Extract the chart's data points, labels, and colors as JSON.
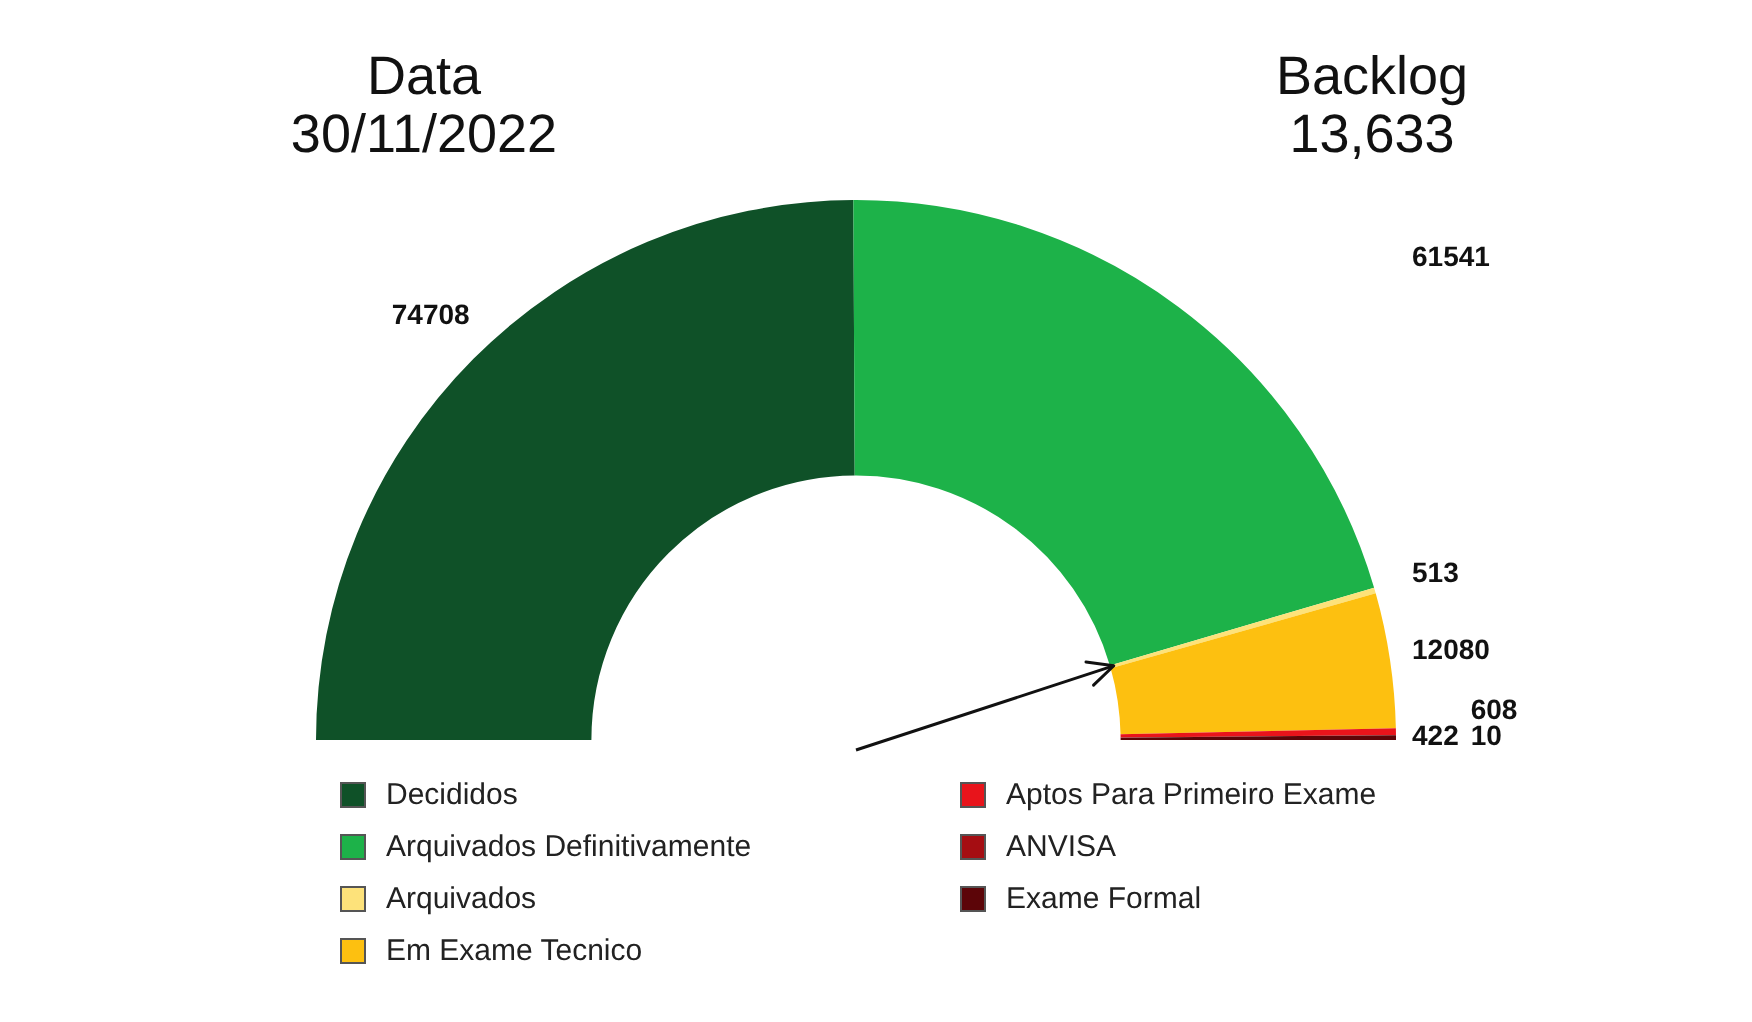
{
  "chart_data": {
    "type": "donut",
    "categories": [
      "Decididos",
      "Arquivados Definitivamente",
      "Arquivados",
      "Em Exame Tecnico",
      "Aptos Para Primeiro Exame",
      "ANVISA",
      "Exame Formal"
    ],
    "values": [
      74708,
      61541,
      513,
      12080,
      608,
      10,
      422
    ],
    "colors": [
      "#0f5128",
      "#1db249",
      "#fde27a",
      "#fdc010",
      "#e8141b",
      "#a50d12",
      "#5c0508"
    ],
    "needle": "Arquivados",
    "data_labels": true,
    "legend": "bottom",
    "annotations": [
      "Data\n30/11/2022",
      "Backlog\n13,633"
    ]
  }
}
